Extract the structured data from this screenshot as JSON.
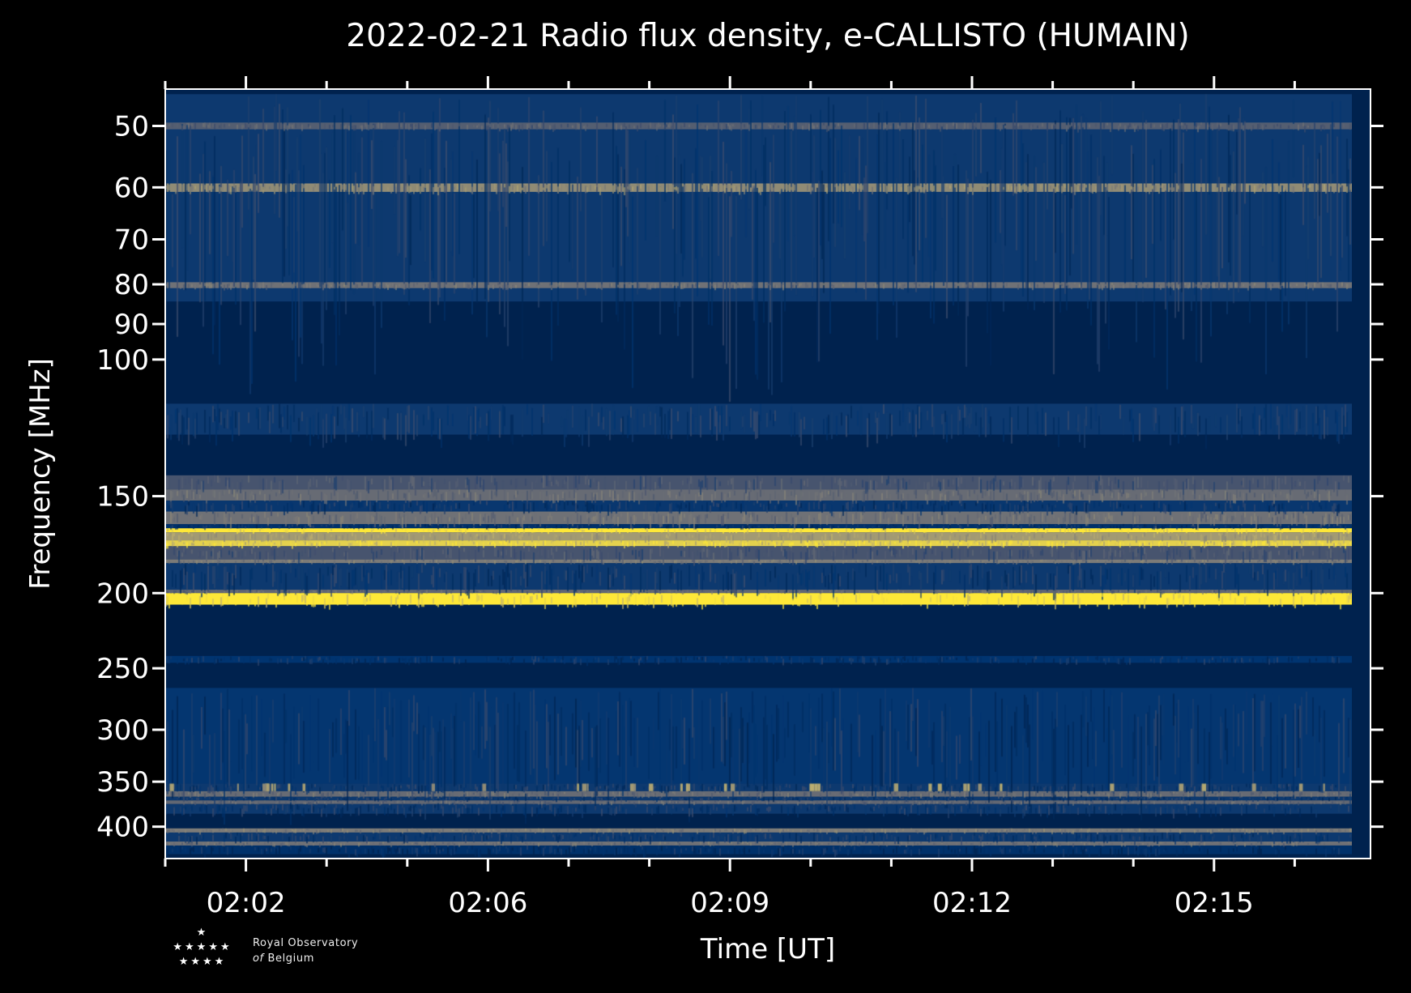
{
  "chart_data": {
    "type": "heatmap",
    "title": "2022-02-21 Radio flux density, e-CALLISTO (HUMAIN)",
    "xlabel": "Time [UT]",
    "ylabel": "Frequency [MHz]",
    "x_tick_labels": [
      "02:02",
      "02:06",
      "02:09",
      "02:12",
      "02:15"
    ],
    "y_scale": "log",
    "y_ticks": [
      50,
      60,
      70,
      80,
      90,
      100,
      150,
      200,
      250,
      300,
      350,
      400
    ],
    "ylim": [
      44.6,
      434
    ],
    "colormap": "cividis",
    "grid": false,
    "bands_mhz": [
      {
        "from": 45.5,
        "to": 84.2,
        "level": 0.15
      },
      {
        "from": 49.5,
        "to": 50.5,
        "level": 0.35
      },
      {
        "from": 59.3,
        "to": 60.8,
        "level": 0.58
      },
      {
        "from": 79.5,
        "to": 80.9,
        "level": 0.45
      },
      {
        "from": 84.2,
        "to": 114,
        "level": 0.0
      },
      {
        "from": 114,
        "to": 125,
        "level": 0.15
      },
      {
        "from": 125,
        "to": 141,
        "level": 0.0
      },
      {
        "from": 141,
        "to": 147,
        "level": 0.3
      },
      {
        "from": 147,
        "to": 152,
        "level": 0.42
      },
      {
        "from": 152,
        "to": 157,
        "level": 0.14
      },
      {
        "from": 157,
        "to": 163,
        "level": 0.45
      },
      {
        "from": 163,
        "to": 165,
        "level": 0.1
      },
      {
        "from": 165,
        "to": 167,
        "level": 1.0
      },
      {
        "from": 167,
        "to": 171,
        "level": 0.65
      },
      {
        "from": 171,
        "to": 174,
        "level": 0.9
      },
      {
        "from": 174,
        "to": 181,
        "level": 0.3
      },
      {
        "from": 181,
        "to": 183,
        "level": 0.5
      },
      {
        "from": 183,
        "to": 198,
        "level": 0.15
      },
      {
        "from": 198,
        "to": 200,
        "level": 0.4
      },
      {
        "from": 200,
        "to": 207,
        "level": 1.0
      },
      {
        "from": 207,
        "to": 241,
        "level": 0.0
      },
      {
        "from": 241,
        "to": 246,
        "level": 0.12
      },
      {
        "from": 246,
        "to": 265,
        "level": 0.0
      },
      {
        "from": 265,
        "to": 352,
        "level": 0.13
      },
      {
        "from": 352,
        "to": 360,
        "level": 0.15
      },
      {
        "from": 360,
        "to": 366,
        "level": 0.42
      },
      {
        "from": 366,
        "to": 370,
        "level": 0.15
      },
      {
        "from": 370,
        "to": 374,
        "level": 0.4
      },
      {
        "from": 374,
        "to": 385,
        "level": 0.15
      },
      {
        "from": 385,
        "to": 402,
        "level": 0.0
      },
      {
        "from": 402,
        "to": 407,
        "level": 0.5
      },
      {
        "from": 407,
        "to": 418,
        "level": 0.15
      },
      {
        "from": 418,
        "to": 423,
        "level": 0.45
      },
      {
        "from": 423,
        "to": 434,
        "level": 0.1
      }
    ]
  },
  "logo": {
    "line1": "Royal Observatory",
    "line2_prefix": "of",
    "line2": "Belgium"
  }
}
